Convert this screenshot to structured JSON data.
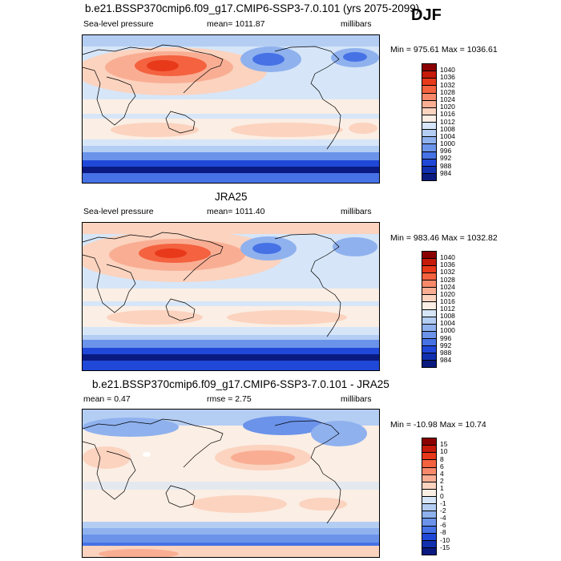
{
  "season": "DJF",
  "panels": [
    {
      "id": "model",
      "title": "b.e21.BSSP370cmip6.f09_g17.CMIP6-SSP3-7.0.101 (yrs 2075-2099)",
      "left_label": "Sea-level pressure",
      "center_label": "mean= 1011.87",
      "units": "millibars",
      "minmax": "Min = 975.61 Max = 1036.61"
    },
    {
      "id": "obs",
      "title": "JRA25",
      "left_label": "Sea-level pressure",
      "center_label": "mean= 1011.40",
      "units": "millibars",
      "minmax": "Min = 983.46 Max = 1032.82"
    },
    {
      "id": "diff",
      "title": "b.e21.BSSP370cmip6.f09_g17.CMIP6-SSP3-7.0.101 - JRA25",
      "left_label": "mean =   0.47",
      "center_label": "rmse =   2.75",
      "units": "millibars",
      "minmax": "Min = -10.98 Max =  10.74"
    }
  ],
  "chart_data": [
    {
      "type": "heatmap",
      "title": "b.e21.BSSP370cmip6.f09_g17.CMIP6-SSP3-7.0.101 (yrs 2075-2099)",
      "variable": "Sea-level pressure",
      "units": "millibars",
      "mean": 1011.87,
      "min": 975.61,
      "max": 1036.61,
      "colorbar_levels": [
        "1040",
        "1036",
        "1032",
        "1028",
        "1024",
        "1020",
        "1016",
        "1012",
        "1008",
        "1004",
        "1000",
        "996",
        "992",
        "988",
        "984"
      ],
      "colorbar_colors": [
        "#8b0000",
        "#c61a0a",
        "#e8391b",
        "#f4623f",
        "#f7896a",
        "#f9ae94",
        "#fbd3bf",
        "#fbeee4",
        "#d6e6f8",
        "#b4cdf3",
        "#8fb1ee",
        "#6b93ea",
        "#4672e6",
        "#2048d8",
        "#1030b0",
        "#0a1a80"
      ]
    },
    {
      "type": "heatmap",
      "title": "JRA25",
      "variable": "Sea-level pressure",
      "units": "millibars",
      "mean": 1011.4,
      "min": 983.46,
      "max": 1032.82,
      "colorbar_levels": [
        "1040",
        "1036",
        "1032",
        "1028",
        "1024",
        "1020",
        "1016",
        "1012",
        "1008",
        "1004",
        "1000",
        "996",
        "992",
        "988",
        "984"
      ],
      "colorbar_colors": [
        "#8b0000",
        "#c61a0a",
        "#e8391b",
        "#f4623f",
        "#f7896a",
        "#f9ae94",
        "#fbd3bf",
        "#fbeee4",
        "#d6e6f8",
        "#b4cdf3",
        "#8fb1ee",
        "#6b93ea",
        "#4672e6",
        "#2048d8",
        "#1030b0",
        "#0a1a80"
      ]
    },
    {
      "type": "heatmap",
      "title": "b.e21.BSSP370cmip6.f09_g17.CMIP6-SSP3-7.0.101 - JRA25",
      "units": "millibars",
      "mean": 0.47,
      "rmse": 2.75,
      "min": -10.98,
      "max": 10.74,
      "colorbar_levels": [
        "15",
        "10",
        "8",
        "6",
        "4",
        "2",
        "1",
        "0",
        "-1",
        "-2",
        "-4",
        "-6",
        "-8",
        "-10",
        "-15"
      ],
      "colorbar_colors": [
        "#8b0000",
        "#c61a0a",
        "#e8391b",
        "#f4623f",
        "#f7896a",
        "#f9ae94",
        "#fbd3bf",
        "#fbeee4",
        "#d6e6f8",
        "#b4cdf3",
        "#8fb1ee",
        "#6b93ea",
        "#4672e6",
        "#2048d8",
        "#1030b0",
        "#0a1a80"
      ]
    }
  ]
}
